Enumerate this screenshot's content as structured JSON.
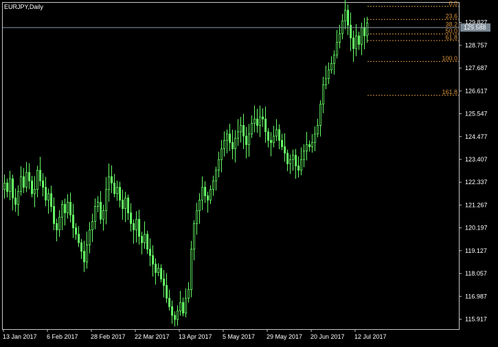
{
  "chart_title": "EURJPY,Daily",
  "colors": {
    "background": "#000000",
    "frame": "#c8c8c8",
    "axis_text": "#ffffff",
    "candle": "#66ff66",
    "fib": "#d9933a",
    "price_line": "#8a9aa8",
    "price_tag_bg": "#7a8894",
    "price_tag_text": "#ffffff"
  },
  "chart_data": {
    "type": "candlestick",
    "symbol": "EURJPY",
    "timeframe": "Daily",
    "ylim": [
      115.45,
      130.75
    ],
    "y_ticks": [
      "129.827",
      "128.757",
      "127.687",
      "126.617",
      "125.547",
      "124.477",
      "123.407",
      "122.337",
      "121.267",
      "120.197",
      "119.127",
      "118.057",
      "116.987",
      "115.917"
    ],
    "x_ticks": [
      "13 Jan 2017",
      "6 Feb 2017",
      "28 Feb 2017",
      "22 Mar 2017",
      "13 Apr 2017",
      "5 May 2017",
      "29 May 2017",
      "20 Jun 2017",
      "12 Jul 2017"
    ],
    "x_tick_index": [
      0,
      16,
      32,
      48,
      64,
      80,
      96,
      112,
      128
    ],
    "current_price": "129.588",
    "fibonacci": {
      "levels": [
        "0.0",
        "23.6",
        "38.2",
        "50.0",
        "61.8",
        "100.0",
        "161.8"
      ],
      "values": [
        130.58,
        129.97,
        129.59,
        129.29,
        128.98,
        128.0,
        126.41
      ]
    },
    "closes": [
      122.3,
      121.9,
      122.5,
      121.6,
      121.3,
      121.9,
      122.6,
      122.1,
      122.8,
      122.4,
      121.8,
      122.0,
      122.9,
      122.4,
      122.1,
      121.5,
      121.8,
      121.2,
      120.4,
      120.1,
      120.7,
      121.3,
      120.9,
      121.4,
      120.8,
      120.2,
      119.9,
      119.5,
      119.1,
      118.6,
      119.4,
      120.1,
      120.5,
      121.2,
      121.4,
      120.6,
      121.0,
      122.0,
      122.6,
      122.3,
      121.8,
      122.1,
      121.5,
      121.1,
      121.6,
      120.9,
      120.4,
      120.1,
      120.6,
      119.8,
      119.5,
      119.9,
      119.2,
      118.9,
      118.5,
      118.1,
      118.3,
      117.8,
      117.5,
      116.9,
      116.5,
      116.1,
      115.9,
      116.3,
      116.7,
      116.2,
      116.9,
      117.3,
      119.2,
      120.4,
      121.0,
      121.5,
      122.1,
      121.7,
      121.5,
      122.0,
      122.4,
      122.9,
      123.4,
      123.9,
      124.3,
      124.6,
      124.2,
      123.9,
      124.4,
      124.7,
      125.0,
      124.5,
      124.1,
      124.6,
      125.1,
      125.3,
      125.0,
      125.4,
      125.3,
      124.7,
      124.3,
      124.2,
      124.5,
      124.8,
      124.3,
      124.0,
      123.7,
      123.2,
      123.4,
      123.6,
      123.1,
      122.9,
      123.4,
      123.8,
      124.1,
      124.0,
      124.2,
      124.6,
      125.0,
      126.0,
      126.9,
      127.2,
      127.6,
      127.9,
      128.3,
      128.9,
      129.3,
      129.9,
      130.4,
      129.7,
      129.1,
      128.6,
      129.2,
      128.8,
      129.6,
      129.2,
      129.8
    ]
  }
}
